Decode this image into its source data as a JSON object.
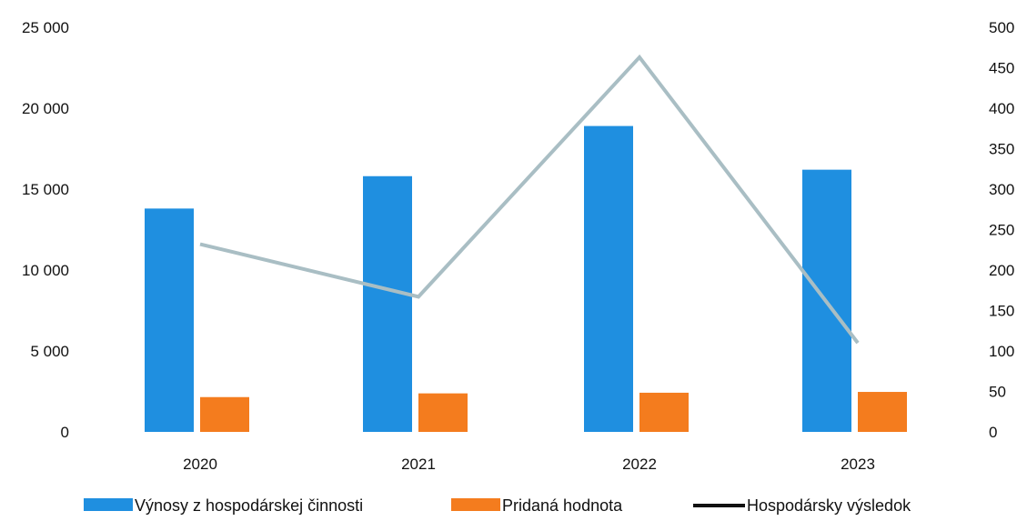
{
  "chart_data": {
    "type": "bar",
    "categories": [
      "2020",
      "2021",
      "2022",
      "2023"
    ],
    "series": [
      {
        "name": "Výnosy z hospodárskej činnosti",
        "type": "bar",
        "axis": "left",
        "color": "#1f8fe0",
        "values": [
          13800,
          15800,
          18900,
          16200
        ]
      },
      {
        "name": "Pridaná hodnota",
        "type": "bar",
        "axis": "left",
        "color": "#f47c1e",
        "values": [
          2150,
          2380,
          2420,
          2470
        ]
      },
      {
        "name": "Hospodársky výsledok",
        "type": "line",
        "axis": "right",
        "color": "#a9bec4",
        "legend_color": "#111111",
        "values": [
          232,
          167,
          463,
          110
        ]
      }
    ],
    "left_axis": {
      "ylim": [
        0,
        25000
      ],
      "ticks": [
        0,
        5000,
        10000,
        15000,
        20000,
        25000
      ],
      "tick_labels": [
        "0",
        "5 000",
        "10 000",
        "15 000",
        "20 000",
        "25 000"
      ]
    },
    "right_axis": {
      "ylim": [
        0,
        500
      ],
      "ticks": [
        0,
        50,
        100,
        150,
        200,
        250,
        300,
        350,
        400,
        450,
        500
      ],
      "tick_labels": [
        "0",
        "50",
        "100",
        "150",
        "200",
        "250",
        "300",
        "350",
        "400",
        "450",
        "500"
      ]
    },
    "title": "",
    "xlabel": "",
    "ylabel": "",
    "grid": false,
    "legend_position": "bottom"
  }
}
